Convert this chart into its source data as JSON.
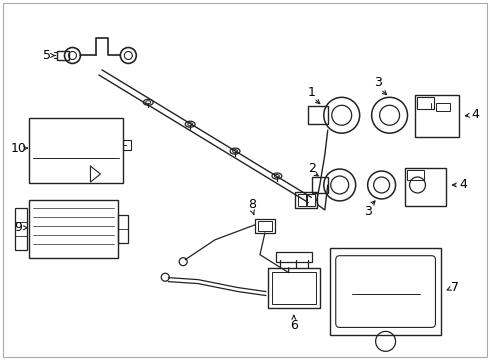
{
  "bg_color": "#ffffff",
  "line_color": "#222222",
  "label_color": "#000000",
  "fig_width": 4.9,
  "fig_height": 3.6,
  "dpi": 100,
  "border_color": "#aaaaaa"
}
